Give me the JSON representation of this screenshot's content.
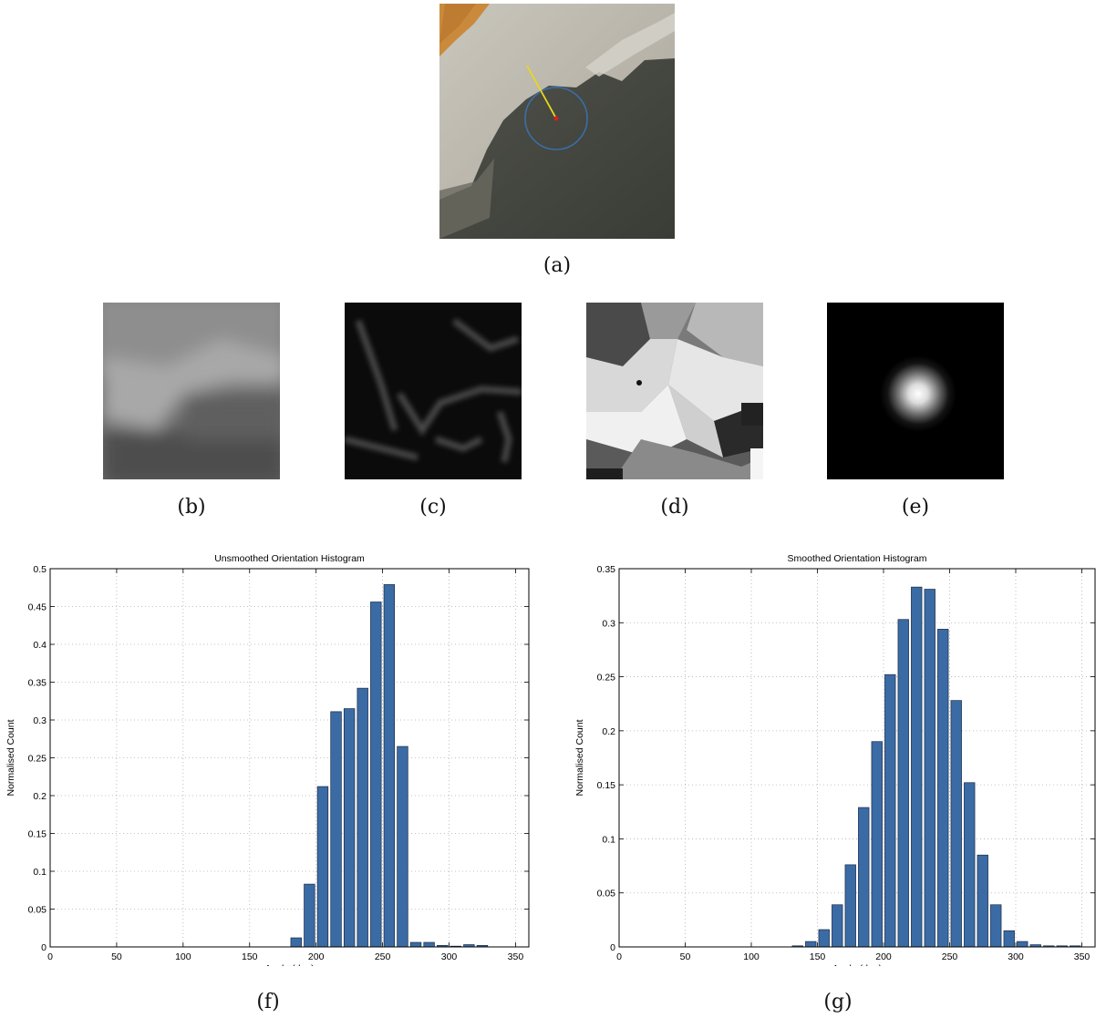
{
  "captions": {
    "a": "(a)",
    "b": "(b)",
    "c": "(c)",
    "d": "(d)",
    "e": "(e)",
    "f": "(f)",
    "g": "(g)"
  },
  "colors": {
    "bar_fill": "#3b6ba5",
    "bar_edge": "#1a2a44",
    "grid": "#b0b0b0",
    "keypoint_circle": "#3b6ea8",
    "keypoint_center": "#d42020",
    "orientation_line": "#e8d81a"
  },
  "chart_data": [
    {
      "type": "bar",
      "title": "Unsmoothed Orientation Histogram",
      "xlabel": "Angle (deg)",
      "ylabel": "Normalised Count",
      "xlim": [
        0,
        360
      ],
      "ylim": [
        0,
        0.5
      ],
      "xticks": [
        "0",
        "50",
        "100",
        "150",
        "200",
        "250",
        "300",
        "350"
      ],
      "yticks": [
        "0",
        "0.05",
        "0.1",
        "0.15",
        "0.2",
        "0.25",
        "0.3",
        "0.35",
        "0.4",
        "0.45",
        "0.5"
      ],
      "grid": true,
      "bar_width": 8,
      "x": [
        185,
        195,
        205,
        215,
        225,
        235,
        245,
        255,
        265,
        275,
        285,
        295,
        305,
        315,
        325
      ],
      "values": [
        0.012,
        0.083,
        0.212,
        0.311,
        0.315,
        0.342,
        0.456,
        0.479,
        0.265,
        0.006,
        0.006,
        0.002,
        0.001,
        0.003,
        0.002
      ]
    },
    {
      "type": "bar",
      "title": "Smoothed Orientation Histogram",
      "xlabel": "Angle (deg)",
      "ylabel": "Normalised Count",
      "xlim": [
        0,
        360
      ],
      "ylim": [
        0,
        0.35
      ],
      "xticks": [
        "0",
        "50",
        "100",
        "150",
        "200",
        "250",
        "300",
        "350"
      ],
      "yticks": [
        "0",
        "0.05",
        "0.1",
        "0.15",
        "0.2",
        "0.25",
        "0.3",
        "0.35"
      ],
      "grid": true,
      "bar_width": 8,
      "x": [
        135,
        145,
        155,
        165,
        175,
        185,
        195,
        205,
        215,
        225,
        235,
        245,
        255,
        265,
        275,
        285,
        295,
        305,
        315,
        325,
        335,
        345
      ],
      "values": [
        0.001,
        0.005,
        0.016,
        0.039,
        0.076,
        0.129,
        0.19,
        0.252,
        0.303,
        0.333,
        0.331,
        0.294,
        0.228,
        0.152,
        0.085,
        0.039,
        0.015,
        0.005,
        0.002,
        0.001,
        0.001,
        0.001
      ]
    }
  ]
}
